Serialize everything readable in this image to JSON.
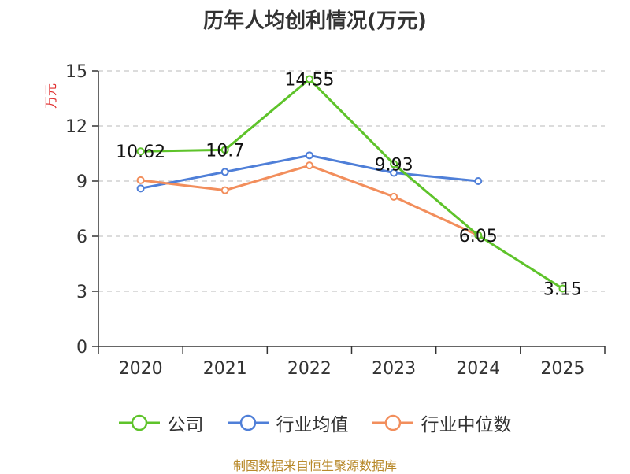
{
  "chart_data": {
    "type": "line",
    "title": "历年人均创利情况(万元)",
    "ylabel": "万元",
    "xlabel": "",
    "categories": [
      "2020",
      "2021",
      "2022",
      "2023",
      "2024",
      "2025"
    ],
    "ylim": [
      0,
      15
    ],
    "yticks": [
      0,
      3,
      6,
      9,
      12,
      15
    ],
    "grid": true,
    "legend_position": "bottom",
    "series": [
      {
        "name": "公司",
        "color": "#5ec32a",
        "values": [
          10.62,
          10.7,
          14.55,
          9.93,
          6.05,
          3.15
        ],
        "labels": [
          "10.62",
          "10.7",
          "14.55",
          "9.93",
          "6.05",
          "3.15"
        ]
      },
      {
        "name": "行业均值",
        "color": "#4f7fd8",
        "values": [
          8.6,
          9.5,
          10.4,
          9.45,
          9.0,
          null
        ]
      },
      {
        "name": "行业中位数",
        "color": "#f28e5c",
        "values": [
          9.05,
          8.5,
          9.85,
          8.15,
          6.05,
          null
        ]
      }
    ]
  },
  "footer": {
    "source": "制图数据来自恒生聚源数据库"
  }
}
